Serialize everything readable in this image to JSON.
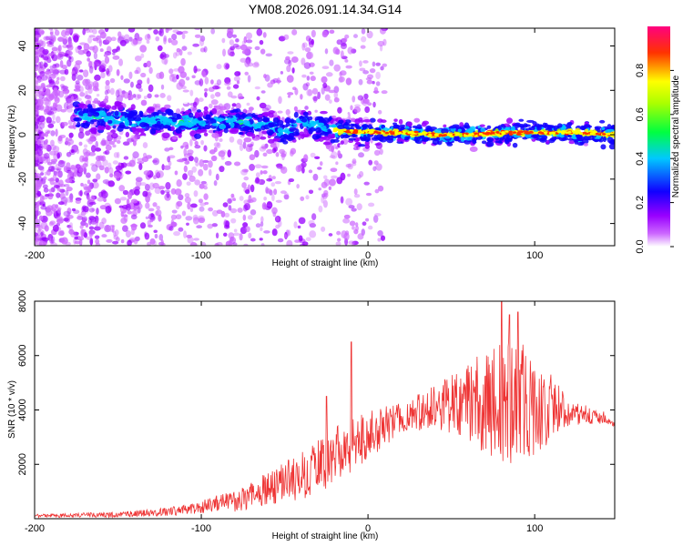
{
  "title": "YM08.2026.091.14.34.G14",
  "chart_data": [
    {
      "type": "heatmap",
      "xlabel": "Height of straight line (km)",
      "ylabel": "Frequency (Hz)",
      "xlim": [
        -200,
        148
      ],
      "ylim": [
        -50,
        48
      ],
      "x_ticks": [
        -200,
        -100,
        0,
        100
      ],
      "x_tick_labels": [
        "-200",
        "-100",
        "0",
        "100"
      ],
      "y_ticks": [
        40,
        20,
        0,
        -20,
        -40
      ],
      "y_tick_labels": [
        "40",
        "20",
        "0",
        "-20",
        "-40"
      ],
      "colorbar": {
        "label": "Normalized spectral amplitude",
        "range": [
          0,
          1
        ],
        "ticks": [
          0.0,
          0.2,
          0.4,
          0.6,
          0.8
        ],
        "tick_labels": [
          "0.0",
          "0.2",
          "0.4",
          "0.6",
          "0.8"
        ],
        "colors": [
          "#ffffff",
          "#9900ff",
          "#0000ff",
          "#00e5ff",
          "#00ff00",
          "#ffff00",
          "#ff0000",
          "#ff0080"
        ]
      },
      "ridge_centerline": {
        "x": [
          -170,
          -150,
          -120,
          -100,
          -80,
          -60,
          -50,
          -40,
          -30,
          -20,
          0,
          20,
          40,
          60,
          80,
          100,
          120,
          148
        ],
        "frequency": [
          8,
          7,
          6,
          5,
          6,
          4,
          1,
          6,
          4,
          2,
          1,
          1,
          0,
          0,
          1,
          1,
          1,
          0
        ]
      }
    },
    {
      "type": "line",
      "xlabel": "Height of straight line (km)",
      "ylabel": "SNR (10 * v/v)",
      "xlim": [
        -200,
        148
      ],
      "ylim": [
        0,
        8000
      ],
      "x_ticks": [
        -200,
        -100,
        0,
        100
      ],
      "x_tick_labels": [
        "-200",
        "-100",
        "0",
        "100"
      ],
      "y_ticks": [
        8000,
        6000,
        4000,
        2000
      ],
      "y_tick_labels": [
        "8000",
        "6000",
        "4000",
        "2000"
      ],
      "color": "#ee3333",
      "envelope": {
        "x": [
          -200,
          -150,
          -120,
          -100,
          -80,
          -60,
          -40,
          -20,
          0,
          20,
          40,
          60,
          80,
          100,
          120,
          148
        ],
        "mean": [
          100,
          150,
          250,
          450,
          650,
          1100,
          1600,
          2300,
          3100,
          3700,
          4100,
          4300,
          4300,
          4300,
          3900,
          3600
        ],
        "spread": [
          60,
          100,
          150,
          250,
          400,
          600,
          900,
          1100,
          900,
          600,
          800,
          1400,
          2400,
          2000,
          500,
          200
        ]
      },
      "spikes": [
        {
          "x": -10,
          "y": 6500
        },
        {
          "x": -25,
          "y": 4500
        },
        {
          "x": 80,
          "y": 8000
        },
        {
          "x": 85,
          "y": 7500
        },
        {
          "x": 90,
          "y": 7600
        }
      ]
    }
  ]
}
